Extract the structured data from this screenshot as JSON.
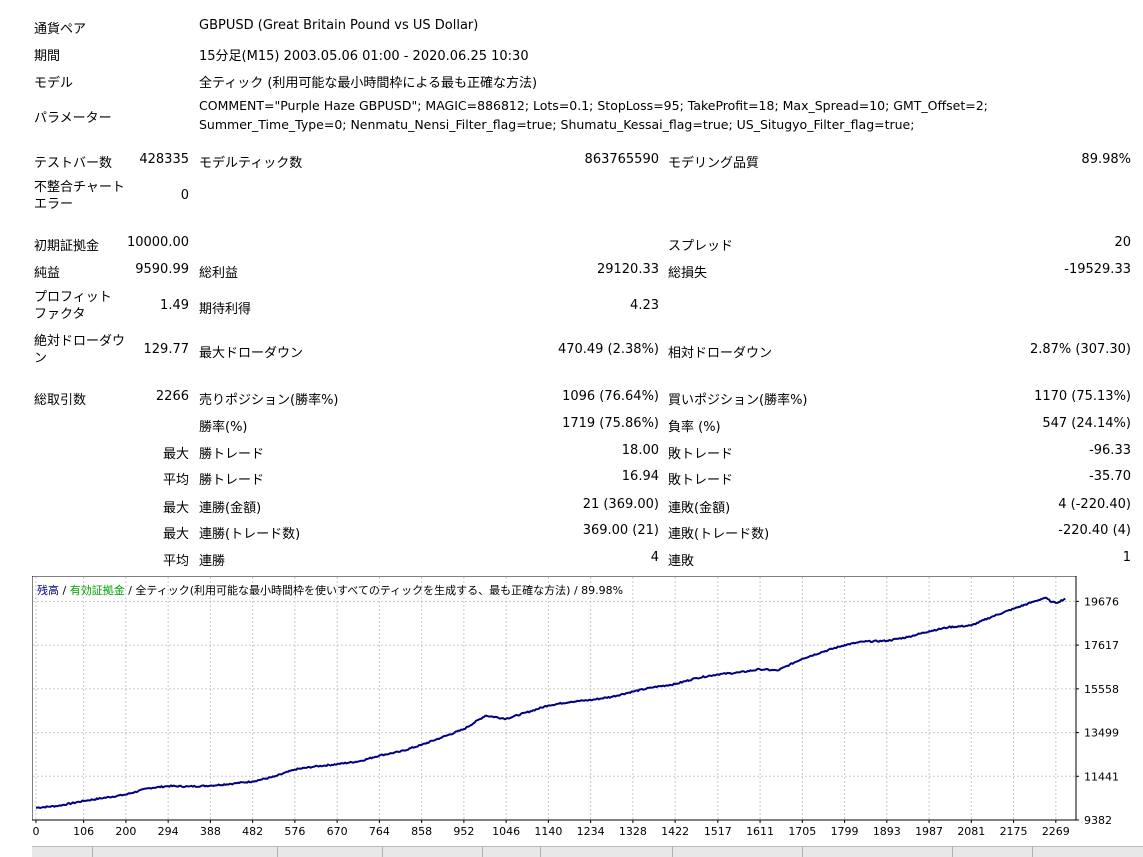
{
  "header": {
    "pair_label": "通貨ペア",
    "pair_value": "GBPUSD (Great Britain Pound vs US Dollar)",
    "period_label": "期間",
    "period_value": "15分足(M15) 2003.05.06 01:00 - 2020.06.25 10:30",
    "model_label": "モデル",
    "model_value": "全ティック (利用可能な最小時間枠による最も正確な方法)",
    "params_label": "パラメーター",
    "params_line1": "COMMENT=\"Purple Haze GBPUSD\"; MAGIC=886812; Lots=0.1; StopLoss=95; TakeProfit=18; Max_Spread=10; GMT_Offset=2;",
    "params_line2": "Summer_Time_Type=0; Nenmatu_Nensi_Filter_flag=true; Shumatu_Kessai_flag=true; US_Situgyo_Filter_flag=true;"
  },
  "stats": {
    "bars_label": "テストバー数",
    "bars_value": "428335",
    "ticks_label": "モデルティック数",
    "ticks_value": "863765590",
    "quality_label": "モデリング品質",
    "quality_value": "89.98%",
    "mismatch_label": "不整合チャートエラー",
    "mismatch_value": "0",
    "deposit_label": "初期証拠金",
    "deposit_value": "10000.00",
    "spread_label": "スプレッド",
    "spread_value": "20",
    "net_label": "純益",
    "net_value": "9590.99",
    "gross_profit_label": "総利益",
    "gross_profit_value": "29120.33",
    "gross_loss_label": "総損失",
    "gross_loss_value": "-19529.33",
    "pf_label": "プロフィットファクタ",
    "pf_value": "1.49",
    "expected_label": "期待利得",
    "expected_value": "4.23",
    "abs_dd_label": "絶対ドローダウン",
    "abs_dd_value": "129.77",
    "max_dd_label": "最大ドローダウン",
    "max_dd_value": "470.49 (2.38%)",
    "rel_dd_label": "相対ドローダウン",
    "rel_dd_value": "2.87% (307.30)",
    "trades_label": "総取引数",
    "trades_value": "2266",
    "short_label": "売りポジション(勝率%)",
    "short_value": "1096 (76.64%)",
    "long_label": "買いポジション(勝率%)",
    "long_value": "1170 (75.13%)",
    "win_label": "勝率(%)",
    "win_value": "1719 (75.86%)",
    "loss_label": "負率 (%)",
    "loss_value": "547 (24.14%)",
    "max1_label": "最大",
    "max_win_label": "勝トレード",
    "max_win_value": "18.00",
    "max_loss_label": "敗トレード",
    "max_loss_value": "-96.33",
    "avg1_label": "平均",
    "avg_win_label": "勝トレード",
    "avg_win_value": "16.94",
    "avg_loss_label": "敗トレード",
    "avg_loss_value": "-35.70",
    "max2_label": "最大",
    "cons_win_amt_label": "連勝(金額)",
    "cons_win_amt_value": "21 (369.00)",
    "cons_loss_amt_label": "連敗(金額)",
    "cons_loss_amt_value": "4 (-220.40)",
    "max3_label": "最大",
    "cons_win_cnt_label": "連勝(トレード数)",
    "cons_win_cnt_value": "369.00 (21)",
    "cons_loss_cnt_label": "連敗(トレード数)",
    "cons_loss_cnt_value": "-220.40 (4)",
    "avg2_label": "平均",
    "avg_cons_win_label": "連勝",
    "avg_cons_win_value": "4",
    "avg_cons_loss_label": "連敗",
    "avg_cons_loss_value": "1"
  },
  "chart_legend": {
    "balance": "残高",
    "sep1": " / ",
    "equity": "有効証拠金",
    "sep2": " / ",
    "desc": "全ティック(利用可能な最小時間枠を使いすべてのティックを生成する、最も正確な方法)",
    "sep3": " / ",
    "quality": "89.98%"
  },
  "chart_data": {
    "type": "line",
    "title": "",
    "xlabel": "",
    "ylabel": "",
    "xlim": [
      0,
      2305
    ],
    "ylim": [
      9382,
      20400
    ],
    "x_ticks": [
      0,
      106,
      200,
      294,
      388,
      482,
      576,
      670,
      764,
      858,
      952,
      1046,
      1140,
      1234,
      1328,
      1422,
      1517,
      1611,
      1705,
      1799,
      1893,
      1987,
      2081,
      2175,
      2269
    ],
    "y_ticks": [
      9382,
      11441,
      13499,
      15558,
      17617,
      19676
    ],
    "grid": true,
    "colors": {
      "balance": "#000080",
      "equity": "#00a000",
      "grid": "#c8c8c8"
    },
    "series": [
      {
        "name": "残高",
        "x": [
          0,
          50,
          106,
          150,
          200,
          250,
          294,
          340,
          388,
          440,
          482,
          530,
          576,
          620,
          670,
          720,
          764,
          810,
          858,
          900,
          952,
          1000,
          1046,
          1100,
          1140,
          1190,
          1234,
          1280,
          1328,
          1375,
          1422,
          1470,
          1517,
          1565,
          1611,
          1650,
          1705,
          1750,
          1799,
          1840,
          1893,
          1940,
          1987,
          2030,
          2081,
          2130,
          2175,
          2225,
          2245,
          2260,
          2269,
          2290
        ],
        "y": [
          9960,
          10050,
          10280,
          10420,
          10580,
          10880,
          10980,
          10960,
          11000,
          11100,
          11200,
          11420,
          11760,
          11900,
          12010,
          12150,
          12420,
          12600,
          12920,
          13250,
          13660,
          14300,
          14150,
          14500,
          14780,
          14950,
          15030,
          15180,
          15430,
          15640,
          15780,
          16070,
          16240,
          16330,
          16480,
          16420,
          16980,
          17300,
          17620,
          17780,
          17820,
          18000,
          18270,
          18460,
          18540,
          18980,
          19330,
          19700,
          19850,
          19650,
          19600,
          19800
        ]
      }
    ]
  }
}
